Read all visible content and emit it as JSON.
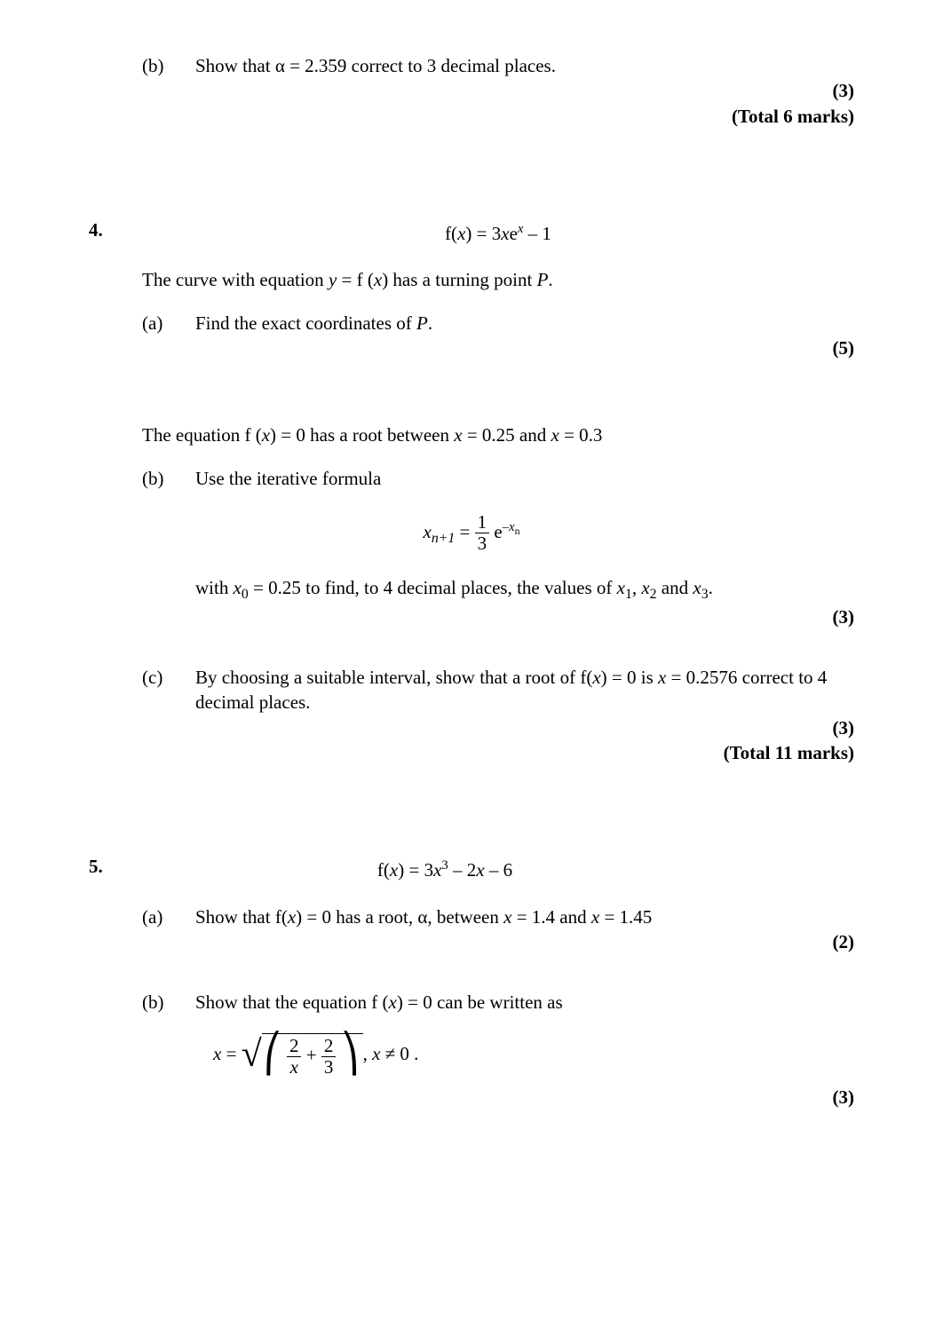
{
  "q3": {
    "part_b_label": "(b)",
    "part_b_text": "Show that α = 2.359 correct to 3 decimal places.",
    "marks_b": "(3)",
    "total": "(Total 6 marks)"
  },
  "q4": {
    "num": "4.",
    "equation_prefix": "f(",
    "equation_var": "x",
    "equation_mid": ") = 3",
    "equation_xe": "x",
    "equation_e": "e",
    "equation_exp": "x",
    "equation_suffix": " – 1",
    "intro1_a": "The curve with equation ",
    "intro1_b": "y",
    "intro1_c": " = f (",
    "intro1_d": "x",
    "intro1_e": ") has a turning point ",
    "intro1_f": "P",
    "intro1_g": ".",
    "a_label": "(a)",
    "a_text_a": "Find the exact coordinates of ",
    "a_text_b": "P",
    "a_text_c": ".",
    "marks_a": "(5)",
    "intro2_a": "The equation f (",
    "intro2_b": "x",
    "intro2_c": ") = 0 has a root between ",
    "intro2_d": "x",
    "intro2_e": " = 0.25 and ",
    "intro2_f": "x",
    "intro2_g": " = 0.3",
    "b_label": "(b)",
    "b_text": "Use the iterative formula",
    "iter_lhs_a": "x",
    "iter_lhs_sub": "n+1",
    "iter_eq": " = ",
    "iter_num": "1",
    "iter_den": "3",
    "iter_e": " e",
    "iter_exp_a": "–",
    "iter_exp_b": "x",
    "iter_exp_c": "n",
    "b2_a": "with ",
    "b2_b": "x",
    "b2_c": "0",
    "b2_d": " = 0.25 to find, to 4 decimal places, the values of ",
    "b2_e": "x",
    "b2_f": "1",
    "b2_g": ", ",
    "b2_h": "x",
    "b2_i": "2",
    "b2_j": " and ",
    "b2_k": "x",
    "b2_l": "3",
    "b2_m": ".",
    "marks_b": "(3)",
    "c_label": "(c)",
    "c_text_a": "By choosing a suitable interval, show that a root of f(",
    "c_text_b": "x",
    "c_text_c": ") = 0 is ",
    "c_text_d": "x",
    "c_text_e": " = 0.2576 correct to 4 decimal places.",
    "marks_c": "(3)",
    "total": "(Total 11 marks)"
  },
  "q5": {
    "num": "5.",
    "eq_a": "f(",
    "eq_b": "x",
    "eq_c": ") = 3",
    "eq_d": "x",
    "eq_e": "3",
    "eq_f": " – 2",
    "eq_g": "x",
    "eq_h": " – 6",
    "a_label": "(a)",
    "a_text_a": "Show that f(",
    "a_text_b": "x",
    "a_text_c": ") = 0 has a root, α, between ",
    "a_text_d": "x",
    "a_text_e": " = 1.4 and ",
    "a_text_f": "x",
    "a_text_g": " = 1.45",
    "marks_a": "(2)",
    "b_label": "(b)",
    "b_text_a": "Show that the equation f (",
    "b_text_b": "x",
    "b_text_c": ") = 0 can be written as",
    "root_lhs": "x",
    "root_eq": " = ",
    "root_num1": "2",
    "root_den1": "x",
    "root_plus": " + ",
    "root_num2": "2",
    "root_den2": "3",
    "root_cond_a": ",  ",
    "root_cond_b": "x",
    "root_cond_c": " ≠ 0 .",
    "marks_b": "(3)"
  }
}
